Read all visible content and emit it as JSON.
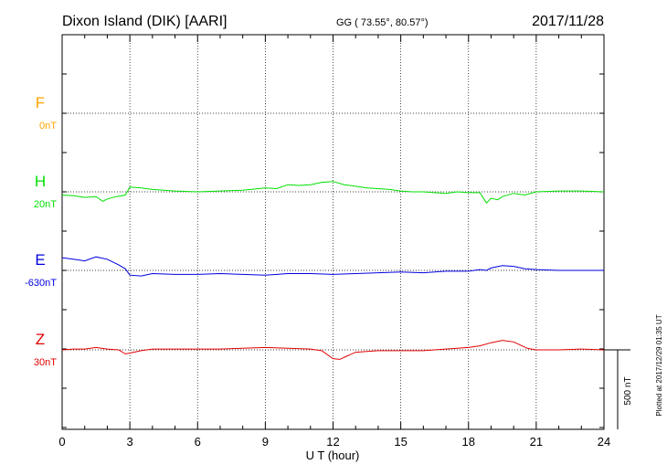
{
  "header": {
    "title": "Dixon Island (DIK)  [AARI]",
    "coords": "GG ( 73.55°,  80.57°)",
    "date": "2017/11/28"
  },
  "plotted_note": "Plotted at 2017/12/29 01:35 UT",
  "scale_label": "500 nT",
  "chart_data": {
    "type": "line",
    "xlabel": "U T (hour)",
    "xlim": [
      0,
      24
    ],
    "x_ticks": [
      "0",
      "3",
      "6",
      "9",
      "12",
      "15",
      "18",
      "21",
      "24"
    ],
    "scale_bar_nT": 500,
    "colors": {
      "F": "#ffa500",
      "H": "#00e000",
      "E": "#0000e0",
      "Z": "#e00000"
    },
    "series": [
      {
        "name": "F",
        "offset": "0nT",
        "x": [],
        "y": []
      },
      {
        "name": "H",
        "offset": "20nT",
        "x": [
          0,
          0.5,
          1,
          1.5,
          1.8,
          2,
          2.4,
          2.8,
          3,
          3.5,
          4,
          5,
          6,
          7,
          8,
          9,
          9.5,
          10,
          10.5,
          11,
          11.5,
          12,
          12.5,
          13,
          13.5,
          14,
          14.5,
          15,
          15.5,
          16,
          16.5,
          17,
          17.5,
          18,
          18.5,
          18.8,
          19,
          19.3,
          19.5,
          20,
          20.5,
          21,
          22,
          23,
          24
        ],
        "y": [
          -20,
          -25,
          -35,
          -30,
          -60,
          -45,
          -30,
          -20,
          30,
          25,
          15,
          5,
          0,
          5,
          10,
          25,
          20,
          45,
          40,
          45,
          60,
          65,
          45,
          35,
          25,
          20,
          15,
          5,
          0,
          0,
          -5,
          -10,
          0,
          -5,
          -5,
          -70,
          -40,
          -50,
          -30,
          -10,
          -20,
          0,
          5,
          5,
          0
        ]
      },
      {
        "name": "E",
        "offset": "-630nT",
        "x": [
          0,
          0.5,
          1,
          1.5,
          2,
          2.5,
          2.8,
          3,
          3.5,
          4,
          5,
          6,
          7,
          8,
          9,
          10,
          11,
          12,
          13,
          14,
          15,
          16,
          17,
          18,
          18.5,
          18.8,
          19,
          19.5,
          20,
          20.5,
          21,
          22,
          23,
          24
        ],
        "y": [
          80,
          70,
          60,
          85,
          70,
          35,
          10,
          -30,
          -35,
          -20,
          -25,
          -25,
          -20,
          -25,
          -30,
          -20,
          -20,
          -25,
          -20,
          -15,
          -10,
          -15,
          -5,
          -5,
          5,
          0,
          15,
          30,
          25,
          10,
          5,
          0,
          0,
          0
        ]
      },
      {
        "name": "Z",
        "offset": "30nT",
        "x": [
          0,
          0.5,
          1,
          1.5,
          2,
          2.5,
          2.8,
          3,
          3.5,
          4,
          5,
          6,
          7,
          8,
          9,
          10,
          11,
          11.5,
          12,
          12.3,
          12.6,
          13,
          14,
          15,
          16,
          17,
          18,
          18.5,
          19,
          19.5,
          20,
          20.3,
          20.6,
          21,
          22,
          23,
          24
        ],
        "y": [
          0,
          5,
          5,
          15,
          5,
          0,
          -25,
          -20,
          -5,
          5,
          5,
          5,
          5,
          10,
          15,
          10,
          5,
          -5,
          -55,
          -60,
          -40,
          -15,
          -5,
          -5,
          -5,
          5,
          15,
          25,
          45,
          60,
          50,
          30,
          10,
          0,
          0,
          5,
          0
        ]
      }
    ]
  }
}
